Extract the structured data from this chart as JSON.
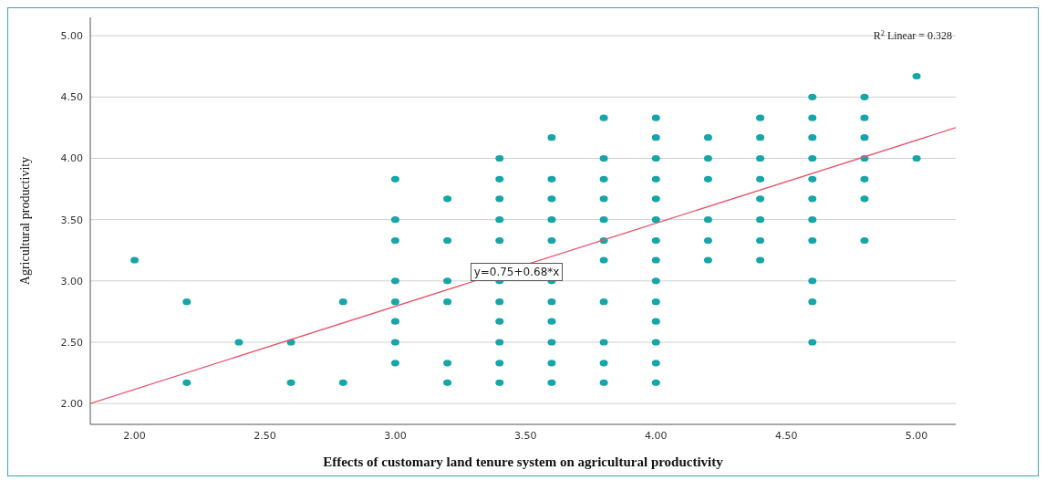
{
  "chart_data": {
    "type": "scatter",
    "xlabel": "Effects of customary land tenure system on agricultural productivity",
    "ylabel": "Agricultural productivity",
    "xlim": [
      1.83,
      5.15
    ],
    "ylim": [
      1.83,
      5.15
    ],
    "xticks": [
      {
        "value": 2,
        "label": "2.00"
      },
      {
        "value": 2.5,
        "label": "2.50"
      },
      {
        "value": 3,
        "label": "3.00"
      },
      {
        "value": 3.5,
        "label": "3.50"
      },
      {
        "value": 4,
        "label": "4.00"
      },
      {
        "value": 4.5,
        "label": "4.50"
      },
      {
        "value": 5,
        "label": "5.00"
      }
    ],
    "yticks": [
      {
        "value": 2,
        "label": "2.00"
      },
      {
        "value": 2.5,
        "label": "2.50"
      },
      {
        "value": 3,
        "label": "3.00"
      },
      {
        "value": 3.5,
        "label": "3.50"
      },
      {
        "value": 4,
        "label": "4.00"
      },
      {
        "value": 4.5,
        "label": "4.50"
      },
      {
        "value": 5,
        "label": "5.00"
      }
    ],
    "grid": "y",
    "marker": "circle",
    "series": [
      {
        "color": "#16a5a9",
        "x": [
          2.0,
          2.2,
          2.2,
          2.4,
          2.6,
          2.6,
          2.8,
          2.8,
          3.0,
          3.0,
          3.0,
          3.0,
          3.0,
          3.0,
          3.0,
          3.0,
          3.2,
          3.2,
          3.2,
          3.2,
          3.2,
          3.2,
          3.4,
          3.4,
          3.4,
          3.4,
          3.4,
          3.4,
          3.4,
          3.4,
          3.4,
          3.4,
          3.4,
          3.6,
          3.6,
          3.6,
          3.6,
          3.6,
          3.6,
          3.6,
          3.6,
          3.6,
          3.6,
          3.6,
          3.8,
          3.8,
          3.8,
          3.8,
          3.8,
          3.8,
          3.8,
          3.8,
          3.8,
          3.8,
          3.8,
          4.0,
          4.0,
          4.0,
          4.0,
          4.0,
          4.0,
          4.0,
          4.0,
          4.0,
          4.0,
          4.0,
          4.0,
          4.0,
          4.0,
          4.2,
          4.2,
          4.2,
          4.2,
          4.2,
          4.2,
          4.4,
          4.4,
          4.4,
          4.4,
          4.4,
          4.4,
          4.4,
          4.4,
          4.6,
          4.6,
          4.6,
          4.6,
          4.6,
          4.6,
          4.6,
          4.6,
          4.6,
          4.6,
          4.6,
          4.8,
          4.8,
          4.8,
          4.8,
          4.8,
          4.8,
          4.8,
          5.0,
          5.0
        ],
        "values": [
          3.17,
          2.83,
          2.17,
          2.5,
          2.5,
          2.17,
          2.83,
          2.17,
          3.83,
          3.5,
          3.33,
          3.0,
          2.83,
          2.67,
          2.5,
          2.33,
          3.67,
          3.33,
          3.0,
          2.83,
          2.33,
          2.17,
          4.0,
          3.83,
          3.67,
          3.5,
          3.33,
          3.0,
          2.83,
          2.67,
          2.5,
          2.33,
          2.17,
          4.17,
          3.83,
          3.67,
          3.5,
          3.33,
          3.0,
          2.83,
          2.67,
          2.5,
          2.33,
          2.17,
          4.33,
          4.0,
          3.83,
          3.67,
          3.5,
          3.33,
          3.17,
          2.83,
          2.5,
          2.33,
          2.17,
          4.33,
          4.17,
          4.0,
          3.83,
          3.67,
          3.5,
          3.33,
          3.17,
          3.0,
          2.83,
          2.67,
          2.5,
          2.33,
          2.17,
          4.17,
          4.0,
          3.83,
          3.5,
          3.33,
          3.17,
          4.33,
          4.17,
          4.0,
          3.83,
          3.67,
          3.5,
          3.33,
          3.17,
          4.5,
          4.33,
          4.17,
          4.0,
          3.83,
          3.67,
          3.5,
          3.33,
          3.0,
          2.83,
          2.5,
          4.5,
          4.33,
          4.17,
          4.0,
          3.83,
          3.67,
          3.33,
          4.67,
          4.0
        ]
      },
      {
        "type": "line",
        "color": "#e8556b",
        "marker": "none",
        "x": [
          1.83,
          5.15
        ],
        "values": [
          2.0,
          4.25
        ]
      }
    ],
    "annotations": [
      "y=0.75+0.68*x",
      "R$^{2}$ Linear = 0.328"
    ]
  }
}
